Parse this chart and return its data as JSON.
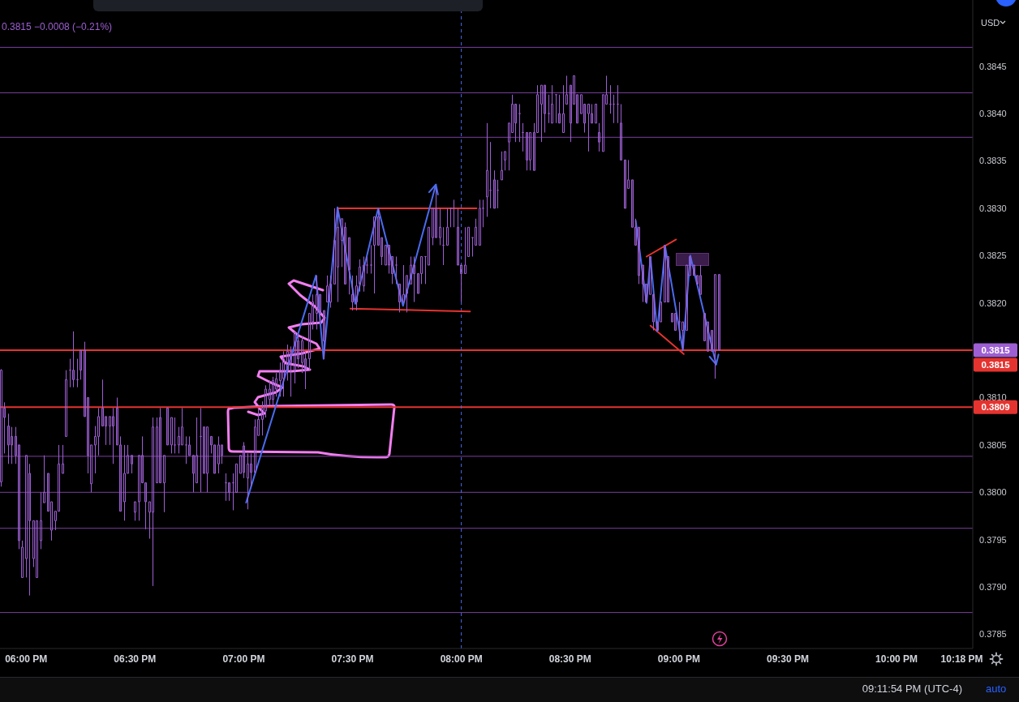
{
  "chart_data": {
    "type": "candlestick",
    "color": "#9d5fd3",
    "x": [
      17.8833,
      17.9,
      17.9167,
      17.9333,
      17.95,
      17.9667,
      17.9833,
      18,
      18.0167,
      18.0333,
      18.05,
      18.0667,
      18.0833,
      18.1,
      18.1167,
      18.1333,
      18.15,
      18.1667,
      18.1833,
      18.2,
      18.2167,
      18.2333,
      18.25,
      18.2667,
      18.2833,
      18.3,
      18.3167,
      18.3333,
      18.35,
      18.3667,
      18.3833,
      18.4,
      18.4167,
      18.4333,
      18.45,
      18.4667,
      18.4833,
      18.5,
      18.5167,
      18.5333,
      18.55,
      18.5667,
      18.5833,
      18.6,
      18.6167,
      18.6333,
      18.65,
      18.6667,
      18.6833,
      18.7,
      18.7167,
      18.7333,
      18.75,
      18.7667,
      18.7833,
      18.8,
      18.8167,
      18.8333,
      18.85,
      18.8667,
      18.8833,
      18.9,
      18.9167,
      18.9333,
      18.95,
      18.9667,
      18.9833,
      19,
      19.0167,
      19.0333,
      19.05,
      19.0667,
      19.0833,
      19.1,
      19.1167,
      19.1333,
      19.15,
      19.1667,
      19.1833,
      19.2,
      19.2167,
      19.2333,
      19.25,
      19.2667,
      19.2833,
      19.3,
      19.3167,
      19.3333,
      19.35,
      19.3667,
      19.3833,
      19.4,
      19.4167,
      19.4333,
      19.45,
      19.4667,
      19.4833,
      19.5,
      19.5167,
      19.5333,
      19.55,
      19.5667,
      19.5833,
      19.6,
      19.6167,
      19.6333,
      19.65,
      19.6667,
      19.6833,
      19.7,
      19.7167,
      19.7333,
      19.75,
      19.7667,
      19.7833,
      19.8,
      19.8167,
      19.8333,
      19.85,
      19.8667,
      19.8833,
      19.9,
      19.9167,
      19.9333,
      19.95,
      19.9667,
      19.9833,
      20,
      20.0167,
      20.0333,
      20.05,
      20.0667,
      20.0833,
      20.1,
      20.1167,
      20.1333,
      20.15,
      20.1667,
      20.1833,
      20.2,
      20.2167,
      20.2333,
      20.25,
      20.2667,
      20.2833,
      20.3,
      20.3167,
      20.3333,
      20.35,
      20.3667,
      20.3833,
      20.4,
      20.4167,
      20.4333,
      20.45,
      20.4667,
      20.4833,
      20.5,
      20.5167,
      20.5333,
      20.55,
      20.5667,
      20.5833,
      20.6,
      20.6167,
      20.6333,
      20.65,
      20.6667,
      20.6833,
      20.7,
      20.7167,
      20.7333,
      20.75,
      20.7667,
      20.7833,
      20.8,
      20.8167,
      20.8333,
      20.85,
      20.8667,
      20.8833,
      20.9,
      20.9167,
      20.9333,
      20.95,
      20.9667,
      20.9833,
      21,
      21.0167,
      21.0333,
      21.05,
      21.0667,
      21.0833,
      21.1,
      21.1167,
      21.1333,
      21.15,
      21.1667,
      21.1833
    ],
    "ohlc": [
      [
        0.38011,
        0.3813,
        0.38006,
        0.38129
      ],
      [
        0.38089,
        0.38095,
        0.38041,
        0.38079
      ],
      [
        0.3807,
        0.38083,
        0.3803,
        0.3805
      ],
      [
        0.38059,
        0.38069,
        0.3803,
        0.3805
      ],
      [
        0.38059,
        0.38069,
        0.3803,
        0.38039
      ],
      [
        0.3805,
        0.3805,
        0.3794,
        0.37949
      ],
      [
        0.3791,
        0.37949,
        0.3791,
        0.37942
      ],
      [
        0.3793,
        0.38039,
        0.3791,
        0.38039
      ],
      [
        0.3802,
        0.3803,
        0.37891,
        0.3797
      ],
      [
        0.3793,
        0.3797,
        0.37921,
        0.3797
      ],
      [
        0.3791,
        0.3797,
        0.3791,
        0.3797
      ],
      [
        0.37949,
        0.38,
        0.3794,
        0.3797
      ],
      [
        0.37989,
        0.38039,
        0.37989,
        0.38
      ],
      [
        0.3802,
        0.3802,
        0.3798,
        0.3798
      ],
      [
        0.3796,
        0.3799,
        0.37949,
        0.3799
      ],
      [
        0.3797,
        0.3798,
        0.3796,
        0.3798
      ],
      [
        0.3798,
        0.3805,
        0.3798,
        0.3803
      ],
      [
        0.3802,
        0.3805,
        0.3802,
        0.3803
      ],
      [
        0.38059,
        0.38129,
        0.38059,
        0.38119
      ],
      [
        0.38129,
        0.38141,
        0.38111,
        0.38129
      ],
      [
        0.38129,
        0.3817,
        0.38111,
        0.38119
      ],
      [
        0.38119,
        0.38141,
        0.38111,
        0.38119
      ],
      [
        0.3815,
        0.3815,
        0.38119,
        0.38129
      ],
      [
        0.3815,
        0.38159,
        0.3808,
        0.3808
      ],
      [
        0.381,
        0.381,
        0.3802,
        0.38039
      ],
      [
        0.38009,
        0.3805,
        0.38,
        0.3805
      ],
      [
        0.3805,
        0.3807,
        0.3802,
        0.38059
      ],
      [
        0.38059,
        0.38089,
        0.38039,
        0.3808
      ],
      [
        0.38089,
        0.38119,
        0.3807,
        0.3807
      ],
      [
        0.3808,
        0.3808,
        0.3805,
        0.3807
      ],
      [
        0.3807,
        0.3808,
        0.3805,
        0.3808
      ],
      [
        0.3808,
        0.38089,
        0.3803,
        0.3807
      ],
      [
        0.38089,
        0.381,
        0.3805,
        0.3805
      ],
      [
        0.3805,
        0.38059,
        0.3798,
        0.3798
      ],
      [
        0.3799,
        0.3805,
        0.3797,
        0.3802
      ],
      [
        0.3802,
        0.3805,
        0.3802,
        0.38039
      ],
      [
        0.38039,
        0.38039,
        0.3802,
        0.3803
      ],
      [
        0.37979,
        0.3799,
        0.3797,
        0.3799
      ],
      [
        0.3799,
        0.38039,
        0.3797,
        0.38039
      ],
      [
        0.38039,
        0.38059,
        0.3801,
        0.3801
      ],
      [
        0.3801,
        0.3801,
        0.37961,
        0.3799
      ],
      [
        0.37979,
        0.3799,
        0.37951,
        0.3799
      ],
      [
        0.37979,
        0.38079,
        0.37901,
        0.38069
      ],
      [
        0.3801,
        0.38079,
        0.3801,
        0.38069
      ],
      [
        0.38079,
        0.38089,
        0.3801,
        0.3801
      ],
      [
        0.3801,
        0.38039,
        0.37979,
        0.38039
      ],
      [
        0.38089,
        0.38089,
        0.3805,
        0.3805
      ],
      [
        0.3805,
        0.38079,
        0.38041,
        0.38079
      ],
      [
        0.3805,
        0.38079,
        0.38041,
        0.3805
      ],
      [
        0.3805,
        0.38069,
        0.38041,
        0.38059
      ],
      [
        0.3805,
        0.38089,
        0.3805,
        0.38069
      ],
      [
        0.3805,
        0.38059,
        0.3803,
        0.3805
      ],
      [
        0.3805,
        0.38059,
        0.38039,
        0.38039
      ],
      [
        0.38039,
        0.38039,
        0.38,
        0.3802
      ],
      [
        0.3801,
        0.38079,
        0.3801,
        0.38039
      ],
      [
        0.38059,
        0.38089,
        0.38,
        0.38059
      ],
      [
        0.38069,
        0.38069,
        0.3802,
        0.3802
      ],
      [
        0.3802,
        0.38069,
        0.38,
        0.38069
      ],
      [
        0.38059,
        0.38059,
        0.38041,
        0.3805
      ],
      [
        0.3805,
        0.3805,
        0.3802,
        0.3802
      ],
      [
        0.3803,
        0.38059,
        0.3802,
        0.3805
      ],
      [
        0.3805,
        0.3805,
        0.3803,
        0.38039
      ],
      [
        0.3801,
        0.3802,
        0.37991,
        0.3801
      ],
      [
        0.3801,
        0.3801,
        0.37991,
        0.38
      ],
      [
        0.3801,
        0.3802,
        0.37981,
        0.3801
      ],
      [
        0.38,
        0.3803,
        0.38,
        0.3803
      ],
      [
        0.3802,
        0.38039,
        0.3802,
        0.38039
      ],
      [
        0.38049,
        0.38053,
        0.38015,
        0.38021
      ],
      [
        0.38015,
        0.38041,
        0.37982,
        0.3803
      ],
      [
        0.3803,
        0.38041,
        0.38006,
        0.38021
      ],
      [
        0.38021,
        0.38077,
        0.38021,
        0.38069
      ],
      [
        0.3806,
        0.38089,
        0.3806,
        0.38077
      ],
      [
        0.38077,
        0.38096,
        0.3806,
        0.38089
      ],
      [
        0.38086,
        0.38113,
        0.38079,
        0.38109
      ],
      [
        0.38098,
        0.38118,
        0.38092,
        0.38109
      ],
      [
        0.38098,
        0.38122,
        0.38092,
        0.38118
      ],
      [
        0.38109,
        0.38126,
        0.38101,
        0.3812
      ],
      [
        0.38118,
        0.38137,
        0.38101,
        0.38129
      ],
      [
        0.3812,
        0.38149,
        0.38101,
        0.38141
      ],
      [
        0.38129,
        0.38156,
        0.38118,
        0.38149
      ],
      [
        0.38149,
        0.38154,
        0.38101,
        0.38137
      ],
      [
        0.38129,
        0.38169,
        0.38115,
        0.38169
      ],
      [
        0.3816,
        0.38166,
        0.38131,
        0.38141
      ],
      [
        0.38137,
        0.38165,
        0.38126,
        0.3816
      ],
      [
        0.38141,
        0.38149,
        0.38109,
        0.38129
      ],
      [
        0.38141,
        0.38189,
        0.38129,
        0.38189
      ],
      [
        0.3818,
        0.38209,
        0.38172,
        0.38201
      ],
      [
        0.38189,
        0.38229,
        0.38172,
        0.38209
      ],
      [
        0.38209,
        0.38209,
        0.3818,
        0.38189
      ],
      [
        0.38192,
        0.38192,
        0.38141,
        0.3816
      ],
      [
        0.38201,
        0.38229,
        0.38201,
        0.38218
      ],
      [
        0.38201,
        0.38229,
        0.38195,
        0.3822
      ],
      [
        0.3822,
        0.383,
        0.3822,
        0.38266
      ],
      [
        0.38238,
        0.383,
        0.38201,
        0.3828
      ],
      [
        0.38266,
        0.38289,
        0.38238,
        0.38289
      ],
      [
        0.3828,
        0.38285,
        0.3822,
        0.3822
      ],
      [
        0.38269,
        0.38269,
        0.38209,
        0.38235
      ],
      [
        0.38209,
        0.38229,
        0.38192,
        0.38201
      ],
      [
        0.38201,
        0.38229,
        0.38192,
        0.38218
      ],
      [
        0.3822,
        0.38246,
        0.38212,
        0.38238
      ],
      [
        0.38218,
        0.38249,
        0.38212,
        0.3824
      ],
      [
        0.3824,
        0.38249,
        0.38231,
        0.3824
      ],
      [
        0.3824,
        0.38261,
        0.38231,
        0.3824
      ],
      [
        0.38261,
        0.38291,
        0.3821,
        0.38291
      ],
      [
        0.38291,
        0.383,
        0.38261,
        0.38261
      ],
      [
        0.38269,
        0.38269,
        0.3824,
        0.38249
      ],
      [
        0.3824,
        0.38261,
        0.3824,
        0.38261
      ],
      [
        0.38261,
        0.38261,
        0.38231,
        0.3824
      ],
      [
        0.38249,
        0.38249,
        0.3822,
        0.38231
      ],
      [
        0.3824,
        0.38249,
        0.3822,
        0.3824
      ],
      [
        0.3822,
        0.3822,
        0.3819,
        0.38201
      ],
      [
        0.38201,
        0.3824,
        0.38201,
        0.38209
      ],
      [
        0.3821,
        0.38229,
        0.3819,
        0.38229
      ],
      [
        0.3822,
        0.38249,
        0.3822,
        0.3824
      ],
      [
        0.3824,
        0.38249,
        0.38201,
        0.38231
      ],
      [
        0.38231,
        0.38231,
        0.3821,
        0.3821
      ],
      [
        0.38231,
        0.38249,
        0.3822,
        0.38249
      ],
      [
        0.38249,
        0.38249,
        0.3822,
        0.38249
      ],
      [
        0.3824,
        0.3828,
        0.3824,
        0.3828
      ],
      [
        0.38269,
        0.383,
        0.38261,
        0.383
      ],
      [
        0.383,
        0.38321,
        0.38269,
        0.38269
      ],
      [
        0.38269,
        0.383,
        0.38261,
        0.3828
      ],
      [
        0.38261,
        0.3828,
        0.3824,
        0.38261
      ],
      [
        0.38261,
        0.383,
        0.38261,
        0.3828
      ],
      [
        0.383,
        0.383,
        0.3828,
        0.383
      ],
      [
        0.383,
        0.38309,
        0.3828,
        0.383
      ],
      [
        0.3828,
        0.383,
        0.3824,
        0.3824
      ],
      [
        0.3824,
        0.3824,
        0.38201,
        0.38231
      ],
      [
        0.38231,
        0.3828,
        0.38231,
        0.3824
      ],
      [
        0.38249,
        0.3828,
        0.38249,
        0.3828
      ],
      [
        0.38269,
        0.38269,
        0.38249,
        0.38269
      ],
      [
        0.38261,
        0.38289,
        0.38261,
        0.3828
      ],
      [
        0.38261,
        0.38309,
        0.38261,
        0.383
      ],
      [
        0.383,
        0.38309,
        0.3828,
        0.383
      ],
      [
        0.38312,
        0.3839,
        0.38291,
        0.3834
      ],
      [
        0.38319,
        0.3837,
        0.383,
        0.38319
      ],
      [
        0.3833,
        0.3834,
        0.383,
        0.383
      ],
      [
        0.38319,
        0.3833,
        0.383,
        0.38319
      ],
      [
        0.3833,
        0.3836,
        0.3833,
        0.3834
      ],
      [
        0.38351,
        0.3836,
        0.3834,
        0.3836
      ],
      [
        0.3837,
        0.3839,
        0.3834,
        0.3839
      ],
      [
        0.3838,
        0.3842,
        0.3838,
        0.3841
      ],
      [
        0.3841,
        0.3841,
        0.3837,
        0.3839
      ],
      [
        0.384,
        0.3841,
        0.3837,
        0.384
      ],
      [
        0.3838,
        0.3839,
        0.3836,
        0.3838
      ],
      [
        0.3838,
        0.3838,
        0.3834,
        0.38351
      ],
      [
        0.38351,
        0.3838,
        0.3834,
        0.3838
      ],
      [
        0.3838,
        0.3839,
        0.3834,
        0.3834
      ],
      [
        0.3838,
        0.3843,
        0.3838,
        0.3842
      ],
      [
        0.3841,
        0.3843,
        0.3837,
        0.3843
      ],
      [
        0.3843,
        0.3843,
        0.3838,
        0.384
      ],
      [
        0.384,
        0.3842,
        0.3839,
        0.384
      ],
      [
        0.3839,
        0.3843,
        0.3839,
        0.3841
      ],
      [
        0.3842,
        0.3842,
        0.3839,
        0.3842
      ],
      [
        0.384,
        0.3842,
        0.3839,
        0.3839
      ],
      [
        0.3838,
        0.3843,
        0.3838,
        0.384
      ],
      [
        0.3841,
        0.3844,
        0.3841,
        0.3842
      ],
      [
        0.3843,
        0.3843,
        0.3837,
        0.3839
      ],
      [
        0.3841,
        0.3844,
        0.3841,
        0.3844
      ],
      [
        0.3842,
        0.3842,
        0.3839,
        0.3839
      ],
      [
        0.384,
        0.3842,
        0.384,
        0.3842
      ],
      [
        0.3841,
        0.3841,
        0.3838,
        0.3839
      ],
      [
        0.384,
        0.3841,
        0.3836,
        0.3841
      ],
      [
        0.384,
        0.3841,
        0.3839,
        0.3839
      ],
      [
        0.3839,
        0.3841,
        0.3839,
        0.3841
      ],
      [
        0.3838,
        0.3839,
        0.3836,
        0.3837
      ],
      [
        0.3836,
        0.3842,
        0.3836,
        0.3842
      ],
      [
        0.3841,
        0.3844,
        0.3841,
        0.3842
      ],
      [
        0.3841,
        0.3843,
        0.384,
        0.3841
      ],
      [
        0.3841,
        0.3842,
        0.3839,
        0.3841
      ],
      [
        0.3841,
        0.3843,
        0.3839,
        0.3841
      ],
      [
        0.3839,
        0.3841,
        0.38351,
        0.38351
      ],
      [
        0.38351,
        0.38351,
        0.383,
        0.383
      ],
      [
        0.38321,
        0.38351,
        0.38321,
        0.3833
      ],
      [
        0.3833,
        0.3833,
        0.3828,
        0.3828
      ],
      [
        0.3828,
        0.38289,
        0.38261,
        0.38261
      ],
      [
        0.3828,
        0.3828,
        0.3822,
        0.38229
      ],
      [
        0.3824,
        0.3824,
        0.38201,
        0.3822
      ],
      [
        0.3822,
        0.3822,
        0.38201,
        0.38201
      ],
      [
        0.38209,
        0.38249,
        0.38209,
        0.38249
      ],
      [
        0.38209,
        0.38209,
        0.38171,
        0.3818
      ],
      [
        0.3818,
        0.3818,
        0.38171,
        0.38171
      ],
      [
        0.3818,
        0.38201,
        0.3818,
        0.38201
      ],
      [
        0.38201,
        0.38261,
        0.38201,
        0.38261
      ],
      [
        0.38249,
        0.38249,
        0.38201,
        0.38201
      ],
      [
        0.38189,
        0.38189,
        0.3818,
        0.3818
      ],
      [
        0.38189,
        0.38189,
        0.38171,
        0.38171
      ],
      [
        0.3818,
        0.38201,
        0.3816,
        0.3818
      ],
      [
        0.38171,
        0.3818,
        0.38149,
        0.3818
      ],
      [
        0.38171,
        0.3824,
        0.38171,
        0.3824
      ],
      [
        0.38229,
        0.38249,
        0.38229,
        0.38249
      ],
      [
        0.3824,
        0.3824,
        0.38229,
        0.38229
      ],
      [
        0.38229,
        0.38229,
        0.3822,
        0.3822
      ],
      [
        0.38229,
        0.3824,
        0.38209,
        0.38209
      ],
      [
        0.38189,
        0.38189,
        0.3816,
        0.3816
      ],
      [
        0.3818,
        0.3818,
        0.38149,
        0.38149
      ],
      [
        0.38171,
        0.38171,
        0.38149,
        0.38149
      ],
      [
        0.38149,
        0.3823,
        0.3812,
        0.3823
      ],
      [
        0.3823,
        0.3823,
        0.3815,
        0.3815
      ]
    ],
    "series": [
      {
        "type": "line",
        "color": "#e5332f",
        "x": [
          19.43,
          20.07
        ],
        "values": [
          0.383,
          0.383
        ]
      },
      {
        "type": "line",
        "color": "#e5332f",
        "x": [
          19.49,
          20.04
        ],
        "values": [
          0.38194,
          0.38191
        ]
      },
      {
        "type": "line",
        "color": "#e5332f",
        "x": [
          20.851,
          20.987
        ],
        "values": [
          0.38249,
          0.38267
        ]
      },
      {
        "type": "line",
        "color": "#e5332f",
        "x": [
          20.869,
          21.022
        ],
        "values": [
          0.38176,
          0.38146
        ]
      },
      {
        "type": "line",
        "color": "#4a6cf0",
        "x": [
          19.011,
          19.332,
          19.367,
          19.431,
          19.513,
          19.618,
          19.732,
          19.883
        ],
        "values": [
          0.37989,
          0.38229,
          0.38141,
          0.38301,
          0.38199,
          0.383,
          0.38197,
          0.38325
        ]
      },
      {
        "type": "line",
        "color": "#4a6cf0",
        "x": [
          20.801,
          20.851,
          20.869,
          20.9,
          20.937,
          21.018,
          21.052,
          21.171
        ],
        "values": [
          0.38287,
          0.382,
          0.38248,
          0.3817,
          0.38259,
          0.3815,
          0.3825,
          0.38135
        ]
      }
    ],
    "xlim": [
      17.88,
      22.35
    ],
    "xticks": [
      {
        "value": 18,
        "label": "06:00 PM"
      },
      {
        "value": 18.5,
        "label": "06:30 PM"
      },
      {
        "value": 19,
        "label": "07:00 PM"
      },
      {
        "value": 19.5,
        "label": "07:30 PM"
      },
      {
        "value": 20,
        "label": "08:00 PM"
      },
      {
        "value": 20.5,
        "label": "08:30 PM"
      },
      {
        "value": 21,
        "label": "09:00 PM"
      },
      {
        "value": 21.5,
        "label": "09:30 PM"
      },
      {
        "value": 22,
        "label": "10:00 PM"
      },
      {
        "value": 22.3,
        "label": "10:18 PM"
      }
    ],
    "ylim": [
      0.37835,
      0.3852
    ],
    "yticks": [
      0.3785,
      {
        "value": 0.379,
        "label": "0.3790"
      },
      0.3795,
      {
        "value": 0.38,
        "label": "0.3800"
      },
      0.3805,
      {
        "value": 0.381,
        "label": "0.3810"
      },
      {
        "value": 0.3815,
        "label": null
      },
      {
        "value": 0.382,
        "label": "0.3820"
      },
      0.3825,
      {
        "value": 0.383,
        "label": "0.3830"
      },
      0.3835,
      {
        "value": 0.384,
        "label": "0.3840"
      },
      0.3845
    ],
    "ref_lines": [
      {
        "axis": "y",
        "value": 0.3815,
        "label": "0.3815",
        "color": "#e5332f"
      },
      {
        "axis": "y",
        "value": 0.3809,
        "label": "0.3809",
        "color": "#e5332f"
      },
      {
        "axis": "y",
        "value": 0.3847,
        "color": "#7b3f9e"
      },
      {
        "axis": "y",
        "value": 0.38422,
        "color": "#7b3f9e"
      },
      {
        "axis": "y",
        "value": 0.38375,
        "color": "#7b3f9e"
      },
      {
        "axis": "y",
        "value": 0.38038,
        "color": "#7b3f9e"
      },
      {
        "axis": "y",
        "value": 0.38,
        "color": "#7b3f9e"
      },
      {
        "axis": "y",
        "value": 0.37962,
        "color": "#7b3f9e"
      },
      {
        "axis": "y",
        "value": 0.37873,
        "color": "#7b3f9e"
      },
      {
        "axis": "x",
        "value": 20,
        "color": "#4a6cf0",
        "line_style": "dashed"
      }
    ],
    "annotations": [
      "0.3815 −0.0008 (−0.21%)",
      "USD",
      "09:11:54 PM (UTC-4)",
      "auto",
      "0.3815"
    ]
  }
}
